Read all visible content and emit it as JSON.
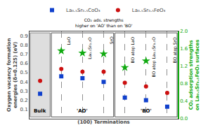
{
  "chart_data": {
    "type": "scatter",
    "categories": [
      null,
      "LaO",
      "La₀.₅Sr₀.₅O",
      "SrO",
      "BO atop LaO",
      "BO atop La₀.₅Sr₀.₅O",
      "BO atop SrO"
    ],
    "groups": [
      "Bulk",
      "'AO'",
      "'AO'",
      "'AO'",
      "'BO'",
      "'BO'",
      "'BO'"
    ],
    "xlabel": "(100) Terminations",
    "ylabel": "Oxygen vacancy formation\nenergies (δ=0.125) (eV)",
    "y2label": "CO₂ adsorption strengths\non La₀.₅Sr₀.₅FeO₃ surfaces",
    "series": [
      {
        "name": "La₀.₅Sr₀.₅CoO₃",
        "color": "#1040cc",
        "marker": "square",
        "values": [
          0.27,
          0.46,
          0.44,
          0.4,
          0.23,
          0.2,
          0.13
        ]
      },
      {
        "name": "La₀.₅Sr₀.₅FeO₃",
        "color": "#cc1010",
        "marker": "circle",
        "values": [
          0.41,
          0.54,
          0.51,
          0.51,
          0.39,
          0.35,
          0.28
        ]
      },
      {
        "color": "#10aa10",
        "marker": "star",
        "axis": "y2",
        "values": [
          null,
          1.55,
          1.5,
          1.48,
          1.17,
          1.32,
          null
        ]
      }
    ],
    "ylim": [
      0.0,
      0.95
    ],
    "yticks": [
      0.1,
      0.2,
      0.3,
      0.4,
      0.5,
      0.6,
      0.7,
      0.8,
      0.9
    ],
    "y2lim": [
      0.0,
      2.0
    ],
    "y2ticks": [
      {
        "value": 0,
        "label": "0.0"
      },
      0.4,
      0.8,
      1.2,
      1.6,
      {
        "value": 2,
        "label": "2.0"
      }
    ],
    "annotations": [
      "CO₂ ads. strengths\nhigher on 'AO' than on 'BO'"
    ],
    "grid": "x",
    "legend": "top",
    "tick_labels": "y"
  }
}
